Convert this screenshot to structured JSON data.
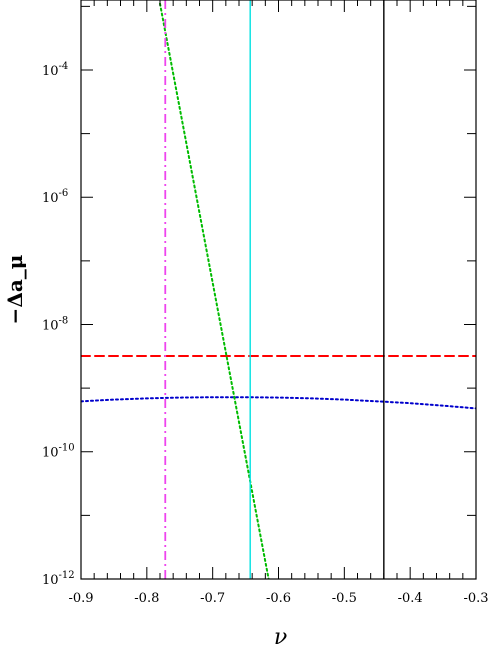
{
  "chart_data": {
    "type": "line",
    "title": "",
    "xlabel": "ν",
    "ylabel": "−Δa_μ",
    "xlim": [
      -0.9,
      -0.3
    ],
    "ylim_log10": [
      -12,
      -2.9
    ],
    "yscale": "log",
    "grid": false,
    "x_ticks": [
      {
        "value": -0.9,
        "label": "-0.9"
      },
      {
        "value": -0.8,
        "label": "-0.8"
      },
      {
        "value": -0.7,
        "label": "-0.7"
      },
      {
        "value": -0.6,
        "label": "-0.6"
      },
      {
        "value": -0.5,
        "label": "-0.5"
      },
      {
        "value": -0.4,
        "label": "-0.4"
      },
      {
        "value": -0.3,
        "label": "-0.3"
      }
    ],
    "y_ticks": [
      {
        "exp": -4,
        "base": "10",
        "sup": "-4"
      },
      {
        "exp": -6,
        "base": "10",
        "sup": "-6"
      },
      {
        "exp": -8,
        "base": "10",
        "sup": "-8"
      },
      {
        "exp": -10,
        "base": "10",
        "sup": "-10"
      },
      {
        "exp": -12,
        "base": "10",
        "sup": "-12"
      }
    ],
    "series": [
      {
        "style": "dashed",
        "color": "#ff0000",
        "points": [
          [
            -0.9,
            3.2e-09
          ],
          [
            -0.3,
            3.2e-09
          ]
        ]
      },
      {
        "style": "dotted",
        "color": "#0000cc",
        "points": [
          [
            -0.9,
            6.2e-10
          ],
          [
            -0.85,
            6.6e-10
          ],
          [
            -0.8,
            6.9e-10
          ],
          [
            -0.75,
            7.1e-10
          ],
          [
            -0.7,
            7.2e-10
          ],
          [
            -0.65,
            7.2e-10
          ],
          [
            -0.6,
            7.1e-10
          ],
          [
            -0.55,
            6.9e-10
          ],
          [
            -0.5,
            6.6e-10
          ],
          [
            -0.45,
            6.2e-10
          ],
          [
            -0.4,
            5.8e-10
          ],
          [
            -0.35,
            5.3e-10
          ],
          [
            -0.3,
            4.8e-10
          ]
        ]
      },
      {
        "style": "dotted",
        "color": "#00bb00",
        "points": [
          [
            -0.78,
            0.0011
          ],
          [
            -0.615,
            1e-12
          ]
        ]
      },
      {
        "style": "dash-dot",
        "color": "#ee44ee",
        "vertical_x": -0.772
      },
      {
        "style": "solid",
        "color": "#00e0e0",
        "vertical_x": -0.643
      },
      {
        "style": "solid",
        "color": "#000000",
        "vertical_x": -0.44
      }
    ]
  }
}
